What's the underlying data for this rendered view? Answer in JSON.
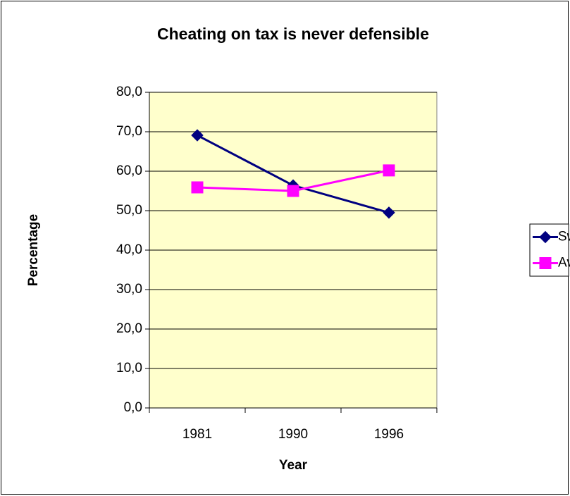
{
  "chart_data": {
    "type": "line",
    "title": "Cheating on tax is never defensible",
    "xlabel": "Year",
    "ylabel": "Percentage",
    "categories": [
      "1981",
      "1990",
      "1996"
    ],
    "series": [
      {
        "name": "Sweden",
        "color": "#000080",
        "marker": "diamond",
        "values": [
          69.1,
          56.4,
          49.5
        ]
      },
      {
        "name": "Average",
        "color": "#ff00ff",
        "marker": "square",
        "values": [
          55.9,
          55.0,
          60.2
        ]
      }
    ],
    "ylim": [
      0,
      80
    ],
    "yticks": [
      {
        "value": 0,
        "label": "0,0"
      },
      {
        "value": 10,
        "label": "10,0"
      },
      {
        "value": 20,
        "label": "20,0"
      },
      {
        "value": 30,
        "label": "30,0"
      },
      {
        "value": 40,
        "label": "40,0"
      },
      {
        "value": 50,
        "label": "50,0"
      },
      {
        "value": 60,
        "label": "60,0"
      },
      {
        "value": 70,
        "label": "70,0"
      },
      {
        "value": 80,
        "label": "80,0"
      }
    ],
    "grid": true,
    "plot_background": "#ffffcc",
    "legend": "right"
  }
}
